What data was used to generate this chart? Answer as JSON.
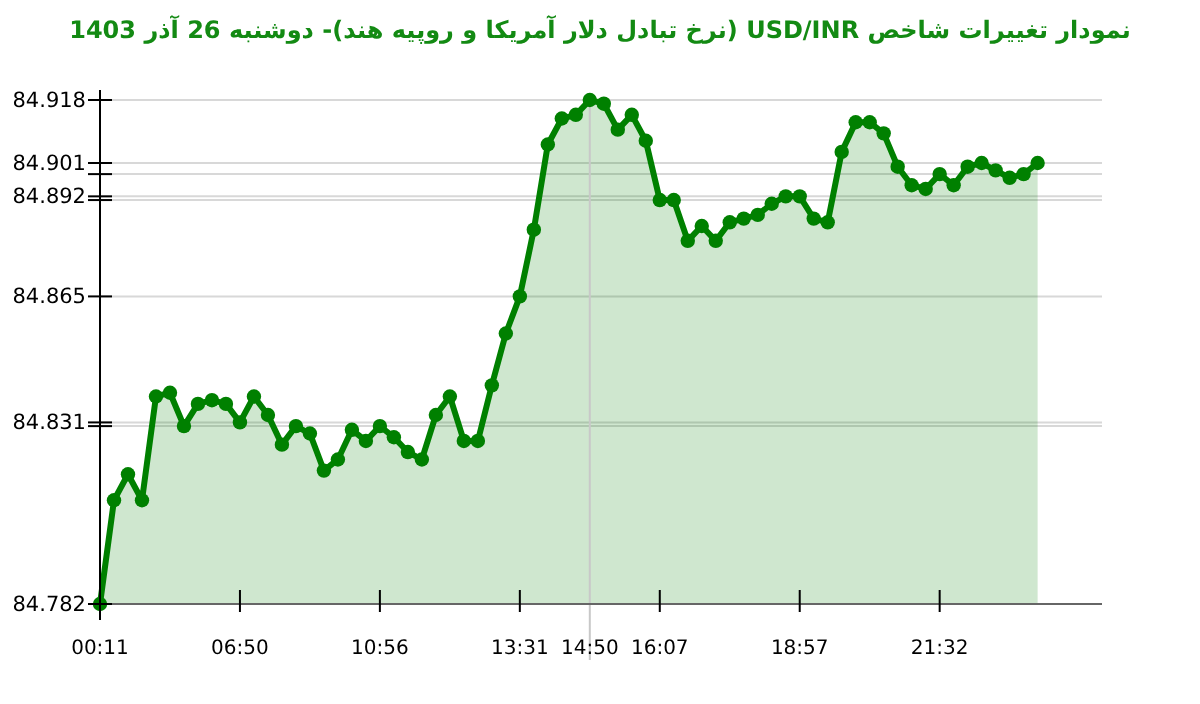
{
  "chart_data": {
    "type": "area",
    "title": "نمودار تغییرات شاخص USD/INR (نرخ تبادل دلار آمریکا و روپیه هند)- دوشنبه  26 آذر 1403",
    "categories": [
      "00:11",
      null,
      null,
      null,
      null,
      null,
      null,
      null,
      null,
      null,
      "06:50",
      null,
      null,
      null,
      null,
      null,
      null,
      null,
      null,
      null,
      "10:56",
      null,
      null,
      null,
      null,
      null,
      null,
      null,
      null,
      null,
      "13:31",
      null,
      null,
      null,
      null,
      "14:50",
      null,
      null,
      null,
      null,
      "16:07",
      null,
      null,
      null,
      null,
      null,
      null,
      null,
      null,
      null,
      "18:57",
      null,
      null,
      null,
      null,
      null,
      null,
      null,
      null,
      null,
      "21:32",
      null,
      null,
      null,
      null,
      null,
      null,
      null
    ],
    "series": [
      {
        "color": "#008000",
        "values": [
          84.782,
          84.81,
          84.817,
          84.81,
          84.838,
          84.839,
          84.83,
          84.836,
          84.837,
          84.836,
          84.831,
          84.838,
          84.833,
          84.825,
          84.83,
          84.828,
          84.818,
          84.821,
          84.829,
          84.826,
          84.83,
          84.827,
          84.823,
          84.821,
          84.833,
          84.838,
          84.826,
          84.826,
          84.841,
          84.855,
          84.865,
          84.883,
          84.906,
          84.913,
          84.914,
          84.918,
          84.917,
          84.91,
          84.914,
          84.907,
          84.891,
          84.891,
          84.88,
          84.884,
          84.88,
          84.885,
          84.886,
          84.887,
          84.89,
          84.892,
          84.892,
          84.886,
          84.885,
          84.904,
          84.912,
          84.912,
          84.909,
          84.9,
          84.895,
          84.894,
          84.898,
          84.895,
          84.9,
          84.901,
          84.899,
          84.897,
          84.898,
          84.901
        ]
      }
    ],
    "ylim": [
      84.782,
      84.918
    ],
    "yticks": [
      84.782,
      {
        "value": 84.83,
        "label": null
      },
      84.831,
      84.865,
      {
        "value": 84.891,
        "label": null
      },
      84.892,
      {
        "value": 84.898,
        "label": null
      },
      84.901,
      84.918
    ],
    "ref_lines": [
      {
        "axis": "x",
        "value": "14:50",
        "color": "#c8c8c8"
      }
    ],
    "grid": "y",
    "marker": "circle",
    "line_style": "solid"
  }
}
